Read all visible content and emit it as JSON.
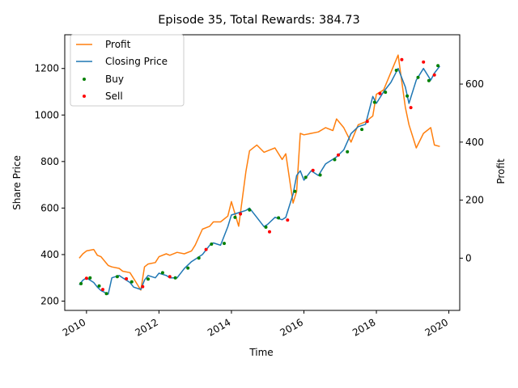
{
  "chart_data": {
    "type": "line",
    "title": "Episode 35, Total Rewards: 384.73",
    "xlabel": "Time",
    "ylabel": "Share Price",
    "y2label": "Profit",
    "xlim": [
      2009.4,
      2020.3
    ],
    "ylim": [
      160,
      1345
    ],
    "y2lim": [
      -180,
      770
    ],
    "x_ticks": [
      "2010",
      "2012",
      "2014",
      "2016",
      "2018",
      "2020"
    ],
    "y_ticks": [
      200,
      400,
      600,
      800,
      1000,
      1200
    ],
    "y2_ticks": [
      0,
      200,
      400,
      600
    ],
    "legend_position": "upper left",
    "colors": {
      "profit": "#ff7f0e",
      "closing": "#1f77b4",
      "buy": "#008000",
      "sell": "#ff0000"
    },
    "series": [
      {
        "name": "Profit",
        "axis": "right",
        "style": "line",
        "x": [
          2009.8,
          2009.9,
          2010.0,
          2010.2,
          2010.3,
          2010.4,
          2010.6,
          2010.7,
          2010.9,
          2011.0,
          2011.2,
          2011.3,
          2011.5,
          2011.6,
          2011.7,
          2011.9,
          2012.0,
          2012.2,
          2012.3,
          2012.5,
          2012.7,
          2012.9,
          2013.0,
          2013.2,
          2013.4,
          2013.5,
          2013.7,
          2013.9,
          2014.0,
          2014.2,
          2014.4,
          2014.5,
          2014.7,
          2014.9,
          2015.0,
          2015.2,
          2015.4,
          2015.5,
          2015.7,
          2015.8,
          2015.9,
          2016.0,
          2016.2,
          2016.4,
          2016.6,
          2016.8,
          2016.9,
          2017.1,
          2017.3,
          2017.5,
          2017.7,
          2017.9,
          2018.0,
          2018.2,
          2018.4,
          2018.6,
          2018.8,
          2018.9,
          2019.1,
          2019.3,
          2019.5,
          2019.6,
          2019.75
        ],
        "y": [
          0,
          15,
          25,
          30,
          10,
          5,
          -25,
          -30,
          -35,
          -45,
          -50,
          -70,
          -110,
          -30,
          -20,
          -15,
          5,
          15,
          10,
          20,
          15,
          25,
          45,
          100,
          110,
          125,
          125,
          145,
          195,
          110,
          300,
          370,
          390,
          365,
          370,
          380,
          340,
          360,
          190,
          230,
          430,
          425,
          430,
          435,
          450,
          440,
          480,
          450,
          400,
          460,
          470,
          490,
          565,
          580,
          640,
          700,
          520,
          460,
          380,
          430,
          450,
          390,
          385
        ]
      },
      {
        "name": "Closing Price",
        "axis": "left",
        "style": "line",
        "x": [
          2009.8,
          2009.9,
          2010.0,
          2010.2,
          2010.3,
          2010.4,
          2010.6,
          2010.7,
          2010.9,
          2011.0,
          2011.2,
          2011.3,
          2011.5,
          2011.6,
          2011.7,
          2011.9,
          2012.0,
          2012.2,
          2012.3,
          2012.5,
          2012.7,
          2012.9,
          2013.0,
          2013.2,
          2013.4,
          2013.5,
          2013.7,
          2013.9,
          2014.0,
          2014.2,
          2014.4,
          2014.5,
          2014.7,
          2014.9,
          2015.0,
          2015.2,
          2015.4,
          2015.5,
          2015.7,
          2015.8,
          2015.9,
          2016.0,
          2016.2,
          2016.4,
          2016.6,
          2016.8,
          2016.9,
          2017.1,
          2017.3,
          2017.5,
          2017.7,
          2017.9,
          2018.0,
          2018.2,
          2018.4,
          2018.6,
          2018.8,
          2018.9,
          2019.1,
          2019.3,
          2019.5,
          2019.6,
          2019.75
        ],
        "y": [
          270,
          290,
          300,
          280,
          260,
          245,
          230,
          300,
          310,
          300,
          280,
          260,
          250,
          290,
          310,
          300,
          320,
          310,
          300,
          300,
          340,
          370,
          380,
          400,
          440,
          450,
          440,
          520,
          570,
          580,
          590,
          600,
          560,
          520,
          530,
          560,
          550,
          560,
          660,
          740,
          760,
          720,
          760,
          740,
          790,
          810,
          820,
          850,
          920,
          950,
          960,
          1080,
          1050,
          1100,
          1140,
          1200,
          1120,
          1050,
          1150,
          1200,
          1150,
          1180,
          1210
        ]
      },
      {
        "name": "Buy",
        "axis": "left",
        "style": "marker",
        "x": [
          2009.85,
          2010.1,
          2010.35,
          2010.55,
          2010.85,
          2011.25,
          2011.7,
          2012.1,
          2012.45,
          2012.8,
          2013.1,
          2013.45,
          2013.8,
          2014.1,
          2014.5,
          2014.95,
          2015.3,
          2015.75,
          2016.05,
          2016.45,
          2016.85,
          2017.2,
          2017.6,
          2017.95,
          2018.25,
          2018.55,
          2018.85,
          2019.15,
          2019.45,
          2019.7
        ],
        "y": [
          275,
          300,
          265,
          232,
          305,
          283,
          295,
          322,
          300,
          342,
          385,
          445,
          448,
          560,
          592,
          518,
          558,
          672,
          732,
          742,
          808,
          842,
          938,
          1055,
          1098,
          1192,
          1082,
          1162,
          1148,
          1212
        ]
      },
      {
        "name": "Sell",
        "axis": "left",
        "style": "marker",
        "x": [
          2010.0,
          2010.45,
          2011.1,
          2011.55,
          2012.3,
          2013.3,
          2014.25,
          2015.05,
          2015.55,
          2016.25,
          2016.95,
          2017.75,
          2018.1,
          2018.7,
          2018.95,
          2019.3,
          2019.6
        ],
        "y": [
          298,
          250,
          296,
          262,
          305,
          422,
          575,
          498,
          548,
          762,
          828,
          972,
          1092,
          1238,
          1032,
          1228,
          1172
        ]
      }
    ]
  }
}
